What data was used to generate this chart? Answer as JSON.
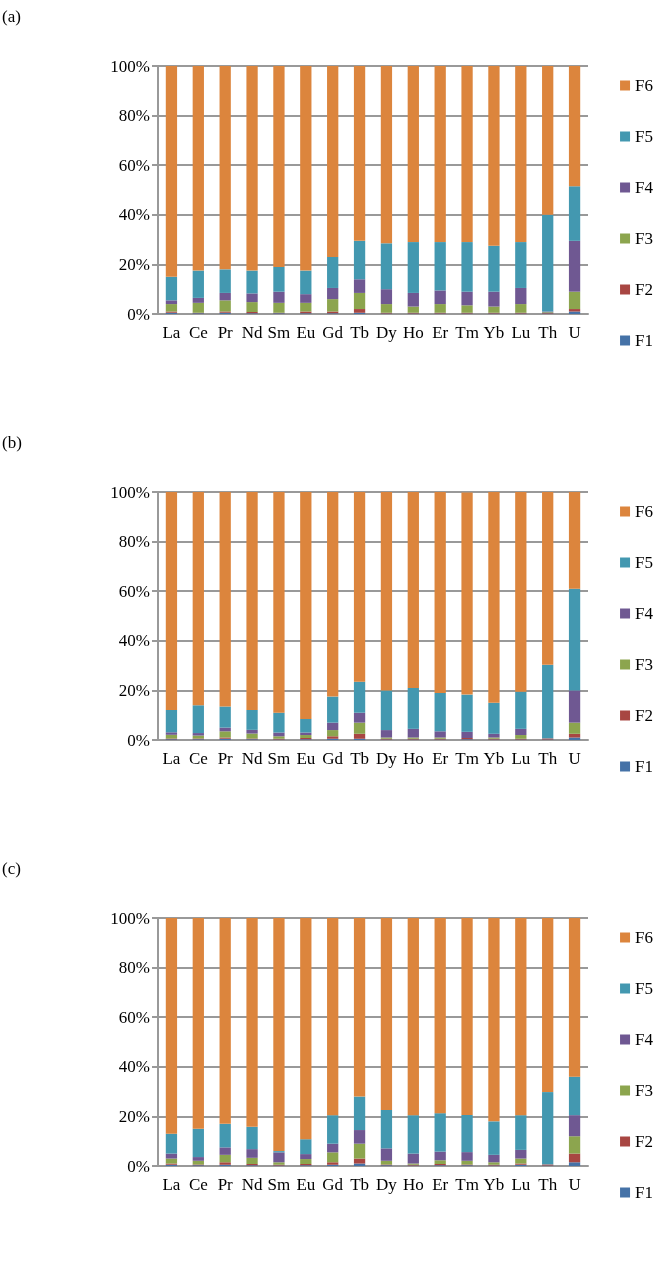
{
  "chart_data": [
    {
      "type": "bar",
      "stacked": true,
      "annotations": [
        "(a)"
      ],
      "categories": [
        "La",
        "Ce",
        "Pr",
        "Nd",
        "Sm",
        "Eu",
        "Gd",
        "Tb",
        "Dy",
        "Ho",
        "Er",
        "Tm",
        "Yb",
        "Lu",
        "Th",
        "U"
      ],
      "ylim": [
        0,
        100
      ],
      "yticks": [
        {
          "value": 0,
          "label": "0%"
        },
        {
          "value": 20,
          "label": "20%"
        },
        {
          "value": 40,
          "label": "40%"
        },
        {
          "value": 60,
          "label": "60%"
        },
        {
          "value": 80,
          "label": "80%"
        },
        {
          "value": 100,
          "label": "100%"
        }
      ],
      "grid": "y",
      "legend": "right",
      "series": [
        {
          "name": "F1",
          "color": "#4572a7",
          "values": [
            0.5,
            0.3,
            0.5,
            0.3,
            0.3,
            0.3,
            0.3,
            0.5,
            0.2,
            0.2,
            0.2,
            0.2,
            0.2,
            0.2,
            0.2,
            1
          ]
        },
        {
          "name": "F2",
          "color": "#a84642",
          "values": [
            0.5,
            0.2,
            0.5,
            0.5,
            0.2,
            0.7,
            0.7,
            1.5,
            0.3,
            0.3,
            0.3,
            0.3,
            0.3,
            0.3,
            0.2,
            1
          ]
        },
        {
          "name": "F3",
          "color": "#8ca54e",
          "values": [
            3,
            4,
            4.5,
            4,
            4,
            3.5,
            5,
            6.5,
            3.5,
            2.5,
            3.5,
            3,
            2.5,
            3.5,
            0.3,
            7
          ]
        },
        {
          "name": "F4",
          "color": "#6f5892",
          "values": [
            1.5,
            2,
            3,
            3.5,
            4.5,
            3.5,
            4.5,
            5.5,
            6,
            5.5,
            5.5,
            5.5,
            6,
            6.5,
            0.3,
            20.5
          ]
        },
        {
          "name": "F5",
          "color": "#4398b0",
          "values": [
            9.5,
            11,
            9.5,
            9.2,
            10,
            9.5,
            12.5,
            15.5,
            18.5,
            20.5,
            19.5,
            20,
            18.5,
            18.5,
            39,
            22
          ]
        },
        {
          "name": "F6",
          "color": "#dc853d",
          "values": [
            85,
            82.5,
            82,
            82.5,
            81,
            82.5,
            77,
            70.5,
            71.5,
            71,
            71,
            71,
            72.5,
            71,
            60,
            48.5
          ]
        }
      ]
    },
    {
      "type": "bar",
      "stacked": true,
      "annotations": [
        "(b)"
      ],
      "categories": [
        "La",
        "Ce",
        "Pr",
        "Nd",
        "Sm",
        "Eu",
        "Gd",
        "Tb",
        "Dy",
        "Ho",
        "Er",
        "Tm",
        "Yb",
        "Lu",
        "Th",
        "U"
      ],
      "ylim": [
        0,
        100
      ],
      "yticks": [
        {
          "value": 0,
          "label": "0%"
        },
        {
          "value": 20,
          "label": "20%"
        },
        {
          "value": 40,
          "label": "40%"
        },
        {
          "value": 60,
          "label": "60%"
        },
        {
          "value": 80,
          "label": "80%"
        },
        {
          "value": 100,
          "label": "100%"
        }
      ],
      "grid": "y",
      "legend": "right",
      "series": [
        {
          "name": "F1",
          "color": "#4572a7",
          "values": [
            0.3,
            0.3,
            0.5,
            0.3,
            0.2,
            0.3,
            0.5,
            0.5,
            0.2,
            0.2,
            0.2,
            0.3,
            0.2,
            0.2,
            0.2,
            1
          ]
        },
        {
          "name": "F2",
          "color": "#a84642",
          "values": [
            0.3,
            0.3,
            0.5,
            0.3,
            0.3,
            0.5,
            1,
            2,
            0.3,
            0.3,
            0.3,
            0.5,
            0.3,
            0.3,
            0.2,
            1.5
          ]
        },
        {
          "name": "F3",
          "color": "#8ca54e",
          "values": [
            1.5,
            1.2,
            2.5,
            2,
            1,
            1.2,
            2.5,
            4.5,
            0.5,
            0.5,
            0.5,
            null,
            0.5,
            1.5,
            0.2,
            4.5
          ]
        },
        {
          "name": "F4",
          "color": "#6f5892",
          "values": [
            1,
            1,
            1.5,
            1.5,
            1.5,
            1,
            3,
            4,
            3,
            3.5,
            2.5,
            2.5,
            1.5,
            2.5,
            0.2,
            13
          ]
        },
        {
          "name": "F5",
          "color": "#4398b0",
          "values": [
            9,
            11.2,
            8.5,
            8,
            8,
            5.5,
            10.5,
            12.5,
            16,
            16.5,
            15.5,
            15,
            12.5,
            15,
            29.5,
            41
          ]
        },
        {
          "name": "F6",
          "color": "#dc853d",
          "values": [
            88,
            86,
            86.5,
            88,
            89,
            91.5,
            82.5,
            76.5,
            80,
            79,
            81,
            81.5,
            85,
            80.5,
            69.7,
            39
          ]
        }
      ]
    },
    {
      "type": "bar",
      "stacked": true,
      "annotations": [
        "(c)"
      ],
      "categories": [
        "La",
        "Ce",
        "Pr",
        "Nd",
        "Sm",
        "Eu",
        "Gd",
        "Tb",
        "Dy",
        "Ho",
        "Er",
        "Tm",
        "Yb",
        "Lu",
        "Th",
        "U"
      ],
      "ylim": [
        0,
        100
      ],
      "yticks": [
        {
          "value": 0,
          "label": "0%"
        },
        {
          "value": 20,
          "label": "20%"
        },
        {
          "value": 40,
          "label": "40%"
        },
        {
          "value": 60,
          "label": "60%"
        },
        {
          "value": 80,
          "label": "80%"
        },
        {
          "value": 100,
          "label": "100%"
        }
      ],
      "grid": "y",
      "legend": "right",
      "series": [
        {
          "name": "F1",
          "color": "#4572a7",
          "values": [
            0.5,
            0.3,
            0.5,
            0.3,
            0.2,
            0.3,
            0.5,
            1,
            0.3,
            0.2,
            0.3,
            0.3,
            0.2,
            0.5,
            0.2,
            1.5
          ]
        },
        {
          "name": "F2",
          "color": "#a84642",
          "values": [
            0.5,
            0.3,
            1,
            0.5,
            0.3,
            0.5,
            1,
            2,
            0.3,
            0.3,
            0.5,
            0.3,
            0.3,
            0.5,
            0.2,
            3.5
          ]
        },
        {
          "name": "F3",
          "color": "#8ca54e",
          "values": [
            2,
            1.5,
            3,
            2.5,
            1,
            2,
            4,
            6,
            1.5,
            0.5,
            1.5,
            1.5,
            1,
            2,
            0.2,
            7
          ]
        },
        {
          "name": "F4",
          "color": "#6f5892",
          "values": [
            2,
            1.5,
            3,
            3.5,
            4,
            2,
            3.5,
            5.5,
            5,
            4,
            3.5,
            3.5,
            3,
            3.5,
            0.2,
            8.5
          ]
        },
        {
          "name": "F5",
          "color": "#4398b0",
          "values": [
            8,
            11.4,
            9.5,
            9,
            0.5,
            6,
            11.5,
            13.5,
            15.5,
            15.5,
            15.5,
            15,
            13.5,
            14,
            29,
            15.5
          ]
        },
        {
          "name": "F6",
          "color": "#dc853d",
          "values": [
            87,
            85,
            83,
            84.2,
            94,
            89.2,
            79.5,
            72,
            77.4,
            79.5,
            78.7,
            79.4,
            82,
            79.5,
            70.2,
            64
          ]
        }
      ]
    }
  ]
}
